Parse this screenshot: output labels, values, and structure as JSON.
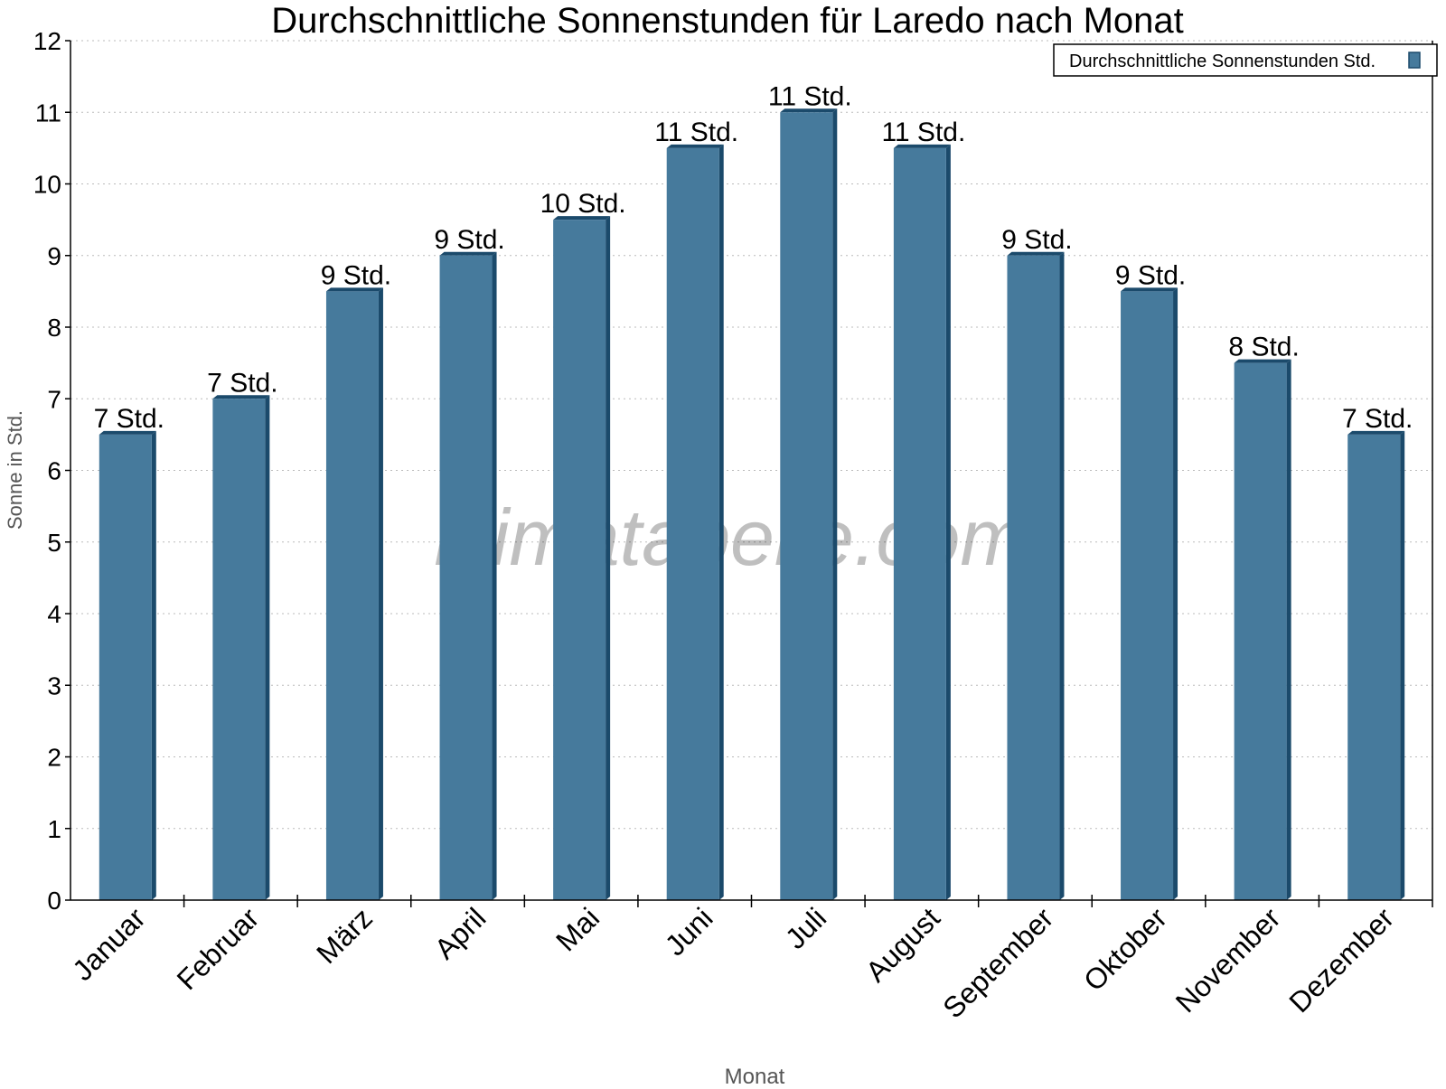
{
  "chart_data": {
    "type": "bar",
    "title": "Durchschnittliche Sonnenstunden für Laredo nach Monat",
    "xlabel": "Monat",
    "ylabel": "Sonne in Std.",
    "ylim": [
      0,
      12
    ],
    "yticks": [
      0,
      1,
      2,
      3,
      4,
      5,
      6,
      7,
      8,
      9,
      10,
      11,
      12
    ],
    "grid": true,
    "legend_position": "top-right",
    "categories": [
      "Januar",
      "Februar",
      "März",
      "April",
      "Mai",
      "Juni",
      "Juli",
      "August",
      "September",
      "Oktober",
      "November",
      "Dezember"
    ],
    "series": [
      {
        "name": "Durchschnittliche Sonnenstunden Std.",
        "color": "#467a9c",
        "values": [
          6.5,
          7.0,
          8.5,
          9.0,
          9.5,
          10.5,
          11.0,
          10.5,
          9.0,
          8.5,
          7.5,
          6.5
        ],
        "data_labels": [
          "7 Std.",
          "7 Std.",
          "9 Std.",
          "9 Std.",
          "10 Std.",
          "11 Std.",
          "11 Std.",
          "11 Std.",
          "9 Std.",
          "9 Std.",
          "8 Std.",
          "7 Std."
        ]
      }
    ],
    "watermark": "klimatabelle.com"
  }
}
